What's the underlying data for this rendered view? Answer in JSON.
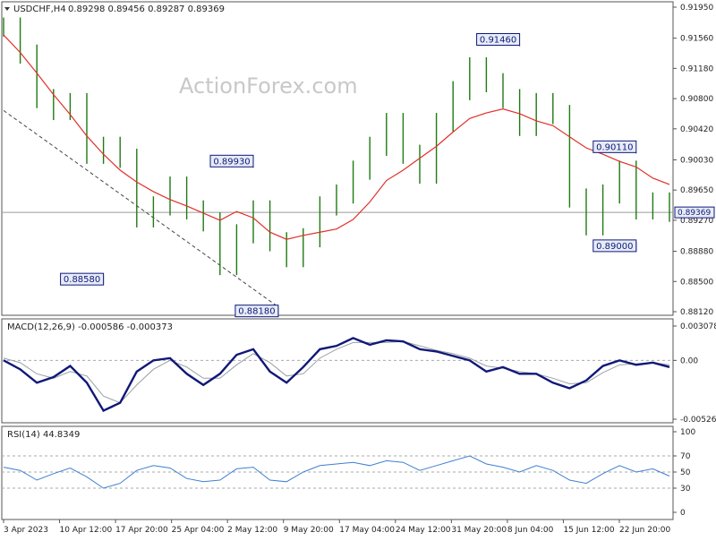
{
  "window": {
    "symbol": "USDCHF,H4",
    "ohlc": "0.89298 0.89456 0.89287 0.89369",
    "watermark": "ActionForex.com"
  },
  "colors": {
    "background": "#ffffff",
    "price_bars": "#1f7a12",
    "moving_average": "#e0302a",
    "macd_line": "#101878",
    "signal_line": "#9aa0a6",
    "rsi_line": "#3f7fd0",
    "label_bg": "#e6ecf7",
    "label_border": "#101878",
    "trendline": "#444444",
    "watermark": "#c8c8c8",
    "axis": "#555555"
  },
  "chart_data": [
    {
      "type": "candlestick",
      "panel": "price",
      "series": [
        {
          "name": "USDCHF,H4"
        },
        {
          "name": "moving average",
          "values": [
            0.916,
            0.9138,
            0.9112,
            0.9085,
            0.906,
            0.9033,
            0.901,
            0.899,
            0.8975,
            0.8963,
            0.8953,
            0.8945,
            0.8936,
            0.8927,
            0.8938,
            0.893,
            0.8912,
            0.8903,
            0.8908,
            0.8912,
            0.8916,
            0.8928,
            0.895,
            0.8977,
            0.899,
            0.9005,
            0.902,
            0.9038,
            0.9055,
            0.9062,
            0.9067,
            0.9061,
            0.9052,
            0.9046,
            0.9032,
            0.9018,
            0.901,
            0.9001,
            0.8994,
            0.898,
            0.8972
          ]
        }
      ],
      "close": [
        0.917,
        0.9136,
        0.908,
        0.9065,
        0.9075,
        0.901,
        0.902,
        0.9005,
        0.893,
        0.8945,
        0.897,
        0.894,
        0.8925,
        0.887,
        0.891,
        0.894,
        0.89,
        0.888,
        0.8905,
        0.8945,
        0.896,
        0.899,
        0.902,
        0.905,
        0.901,
        0.8985,
        0.905,
        0.909,
        0.912,
        0.91,
        0.908,
        0.9045,
        0.9075,
        0.906,
        0.8955,
        0.892,
        0.896,
        0.899,
        0.894,
        0.895,
        0.8937
      ],
      "y_ticks": [
        "0.91950",
        "0.91560",
        "0.91180",
        "0.90800",
        "0.90420",
        "0.90030",
        "0.89650",
        "0.89270",
        "0.88880",
        "0.88500",
        "0.88120"
      ],
      "current_price": "0.89369",
      "ylim": [
        0.8812,
        0.9195
      ],
      "annotations": [
        {
          "label": "0.91460",
          "x": 31,
          "value": 0.9146
        },
        {
          "label": "0.89930",
          "x": 15,
          "value": 0.8993
        },
        {
          "label": "0.90110",
          "x": 38,
          "value": 0.9011
        },
        {
          "label": "0.88580",
          "x": 6,
          "value": 0.8858
        },
        {
          "label": "0.88180",
          "x": 16.5,
          "value": 0.8818
        },
        {
          "label": "0.89000",
          "x": 38,
          "value": 0.89
        }
      ],
      "trendline": {
        "from": [
          0,
          0.9065
        ],
        "to": [
          16.5,
          0.8818
        ]
      }
    },
    {
      "type": "line",
      "panel": "macd",
      "title": "MACD(12,26,9) -0.000586 -0.000373",
      "series": [
        {
          "name": "MACD",
          "values": [
            0.0,
            -0.0008,
            -0.002,
            -0.0015,
            -0.0005,
            -0.002,
            -0.0045,
            -0.0038,
            -0.001,
            0.0,
            0.0002,
            -0.0012,
            -0.0022,
            -0.0012,
            0.0005,
            0.001,
            -0.001,
            -0.002,
            -0.0006,
            0.001,
            0.0013,
            0.002,
            0.0014,
            0.0018,
            0.0017,
            0.001,
            0.0008,
            0.0004,
            0.0,
            -0.001,
            -0.0006,
            -0.0012,
            -0.0012,
            -0.002,
            -0.0025,
            -0.0018,
            -0.0005,
            0.0,
            -0.0004,
            -0.0002,
            -0.0006
          ]
        },
        {
          "name": "Signal",
          "values": [
            0.0002,
            -0.0002,
            -0.0012,
            -0.0016,
            -0.001,
            -0.0014,
            -0.0032,
            -0.0038,
            -0.0022,
            -0.0008,
            0.0,
            -0.0006,
            -0.0016,
            -0.0016,
            -0.0004,
            0.0006,
            -0.0002,
            -0.0014,
            -0.0012,
            0.0002,
            0.001,
            0.0016,
            0.0016,
            0.0016,
            0.0017,
            0.0013,
            0.0009,
            0.0006,
            0.0002,
            -0.0005,
            -0.0007,
            -0.001,
            -0.0012,
            -0.0016,
            -0.0021,
            -0.002,
            -0.0011,
            -0.0004,
            -0.0003,
            -0.0002,
            -0.0004
          ]
        }
      ],
      "y_ticks": [
        "0.003078",
        "0.00",
        "-0.005268"
      ],
      "ylim": [
        -0.005268,
        0.003078
      ]
    },
    {
      "type": "line",
      "panel": "rsi",
      "title": "RSI(14) 44.8349",
      "series": [
        {
          "name": "RSI(14)",
          "values": [
            56,
            52,
            40,
            48,
            55,
            44,
            30,
            36,
            52,
            58,
            55,
            42,
            38,
            40,
            54,
            56,
            40,
            38,
            50,
            58,
            60,
            62,
            58,
            64,
            62,
            52,
            58,
            64,
            70,
            60,
            56,
            50,
            58,
            52,
            40,
            36,
            48,
            58,
            50,
            54,
            45
          ]
        }
      ],
      "y_ticks": [
        "100",
        "70",
        "50",
        "30",
        "0"
      ],
      "ylim": [
        0,
        100
      ]
    }
  ],
  "x_axis": {
    "labels": [
      "3 Apr 2023",
      "10 Apr 12:00",
      "17 Apr 20:00",
      "25 Apr 04:00",
      "2 May 12:00",
      "9 May 20:00",
      "17 May 04:00",
      "24 May 12:00",
      "31 May 20:00",
      "8 Jun 04:00",
      "15 Jun 12:00",
      "22 Jun 20:00"
    ]
  }
}
